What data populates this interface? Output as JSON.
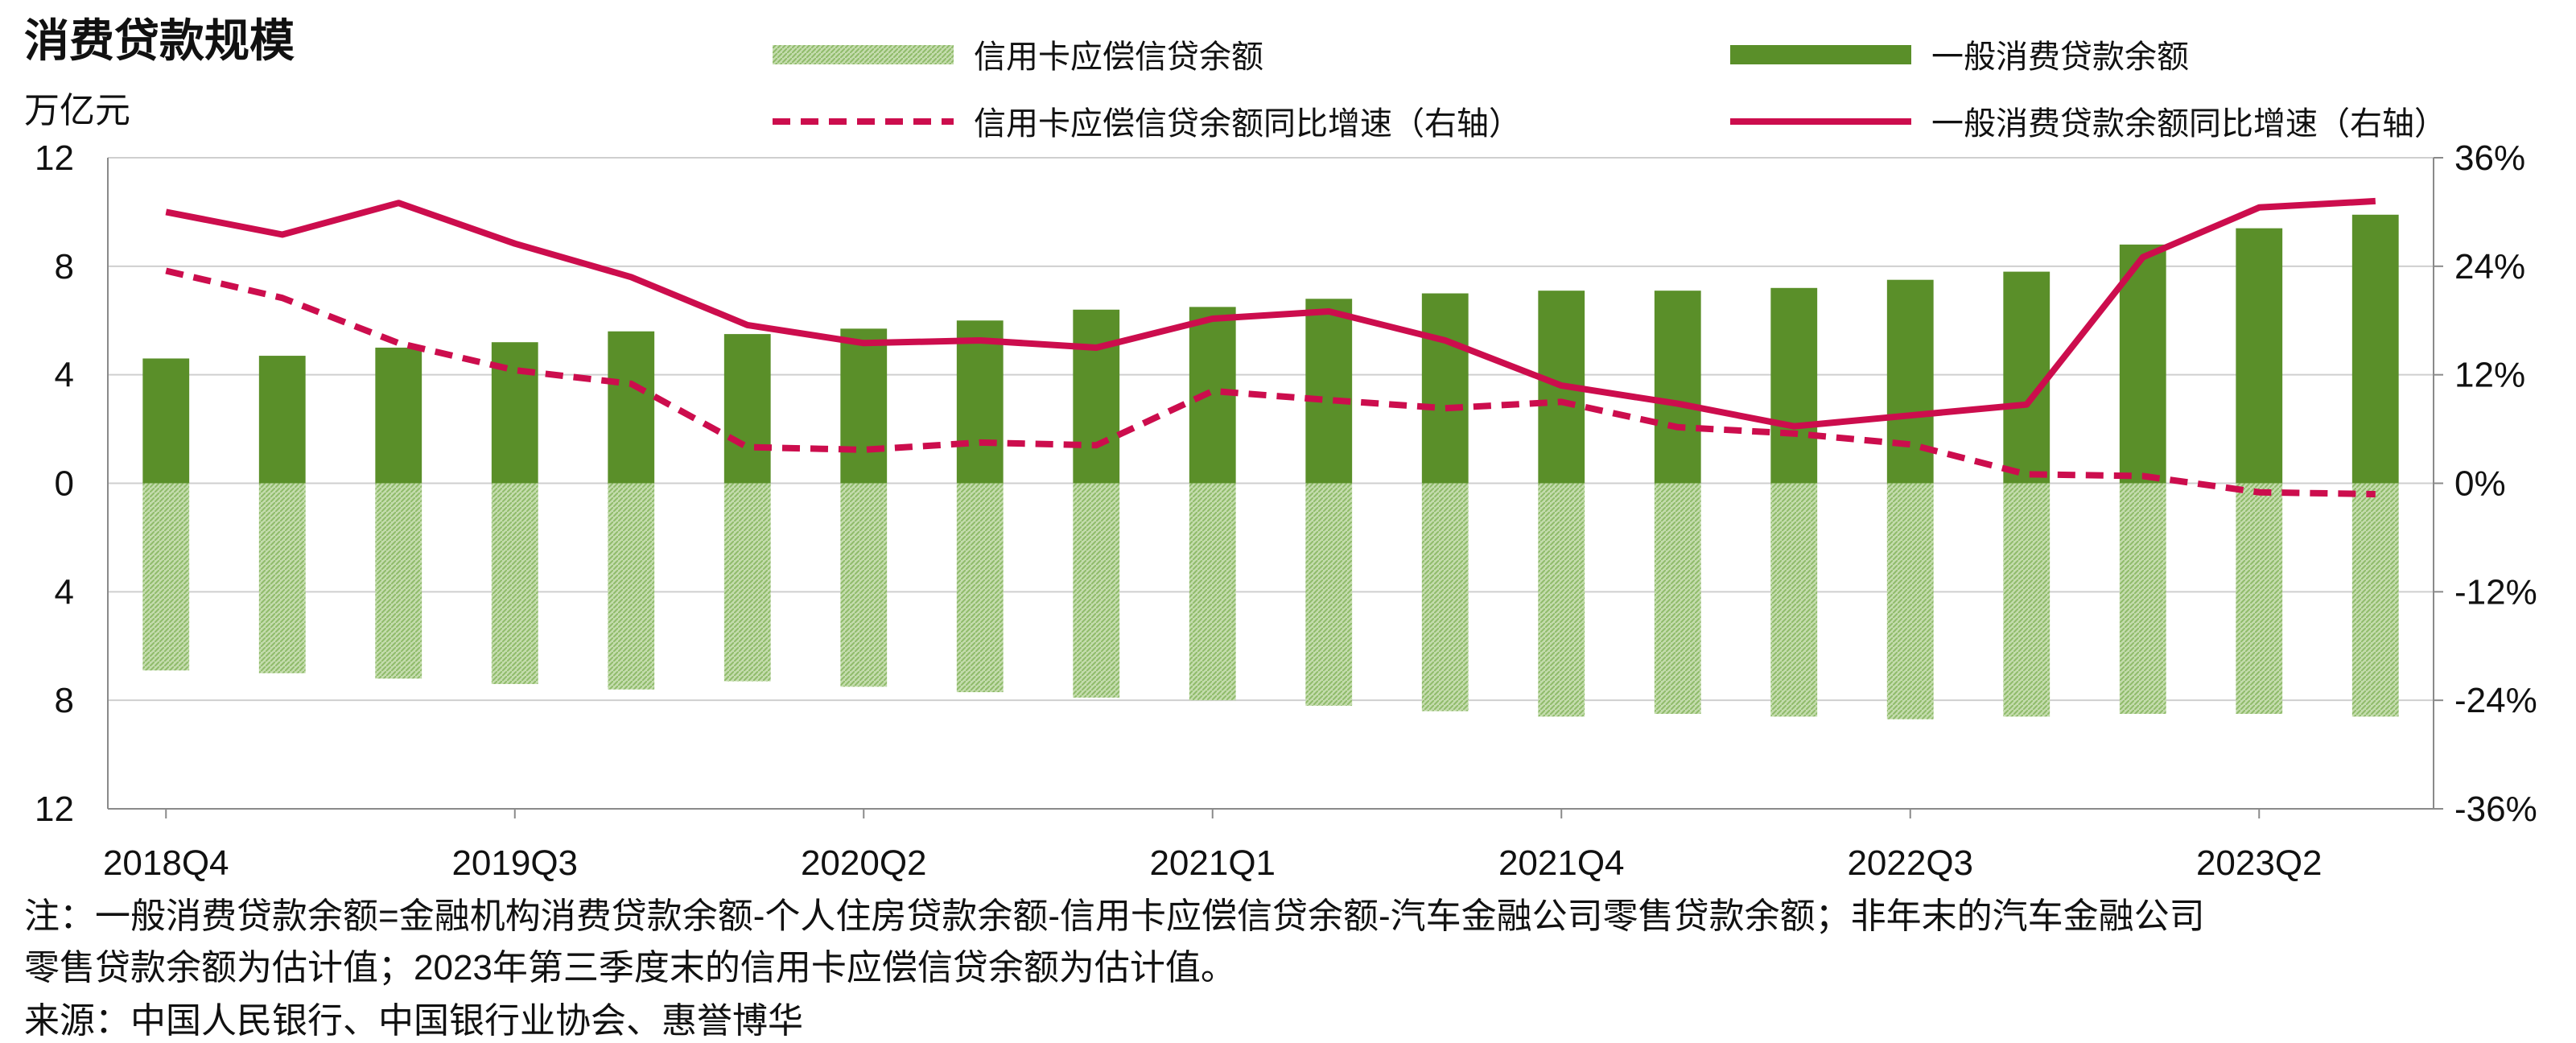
{
  "chart_data": {
    "type": "bar",
    "title": "消费贷款规模",
    "left_axis_unit": "万亿元",
    "categories": [
      "2018Q4",
      "2019Q1",
      "2019Q2",
      "2019Q3",
      "2019Q4",
      "2020Q1",
      "2020Q2",
      "2020Q3",
      "2020Q4",
      "2021Q1",
      "2021Q2",
      "2021Q3",
      "2021Q4",
      "2022Q1",
      "2022Q2",
      "2022Q3",
      "2022Q4",
      "2023Q1",
      "2023Q2",
      "2023Q3"
    ],
    "x_tick_labels": [
      "2018Q4",
      "2019Q3",
      "2020Q2",
      "2021Q1",
      "2021Q4",
      "2022Q3",
      "2023Q2"
    ],
    "x_tick_indices": [
      0,
      3,
      6,
      9,
      12,
      15,
      18
    ],
    "left_axis": {
      "ticks": [
        12,
        8,
        4,
        0,
        -4,
        -8,
        -12
      ],
      "tick_labels": [
        "12",
        "8",
        "4",
        "0",
        "4",
        "8",
        "12"
      ],
      "range": [
        -12,
        12
      ]
    },
    "right_axis": {
      "ticks": [
        36,
        24,
        12,
        0,
        -12,
        -24,
        -36
      ],
      "tick_labels": [
        "36%",
        "24%",
        "12%",
        "0%",
        "-12%",
        "-24%",
        "-36%"
      ],
      "range": [
        -36,
        36
      ]
    },
    "series": [
      {
        "name": "信用卡应偿信贷余额",
        "type": "bar",
        "axis": "left",
        "direction": "down",
        "color": "#a9cc8a",
        "values": [
          6.9,
          7.0,
          7.2,
          7.4,
          7.6,
          7.3,
          7.5,
          7.7,
          7.9,
          8.0,
          8.2,
          8.4,
          8.6,
          8.5,
          8.6,
          8.7,
          8.6,
          8.5,
          8.5,
          8.6
        ]
      },
      {
        "name": "一般消费贷款余额",
        "type": "bar",
        "axis": "left",
        "direction": "up",
        "color": "#5a8f29",
        "values": [
          4.6,
          4.7,
          5.0,
          5.2,
          5.6,
          5.5,
          5.7,
          6.0,
          6.4,
          6.5,
          6.8,
          7.0,
          7.1,
          7.1,
          7.2,
          7.5,
          7.8,
          8.8,
          9.4,
          9.9
        ]
      },
      {
        "name": "信用卡应偿信贷余额同比增速（右轴）",
        "type": "line",
        "axis": "right",
        "dashed": true,
        "color": "#cc0d4d",
        "values": [
          23.5,
          20.5,
          15.5,
          12.5,
          11.0,
          4.0,
          3.7,
          4.5,
          4.2,
          10.2,
          9.2,
          8.3,
          9.0,
          6.2,
          5.5,
          4.3,
          1.0,
          0.8,
          -1.0,
          -1.2
        ]
      },
      {
        "name": "一般消费贷款余额同比增速（右轴）",
        "type": "line",
        "axis": "right",
        "dashed": false,
        "color": "#cc0d4d",
        "values": [
          30.0,
          27.5,
          31.0,
          26.5,
          22.8,
          17.5,
          15.5,
          15.8,
          15.0,
          18.2,
          19.0,
          15.8,
          10.8,
          8.8,
          6.3,
          7.5,
          8.7,
          25.0,
          30.5,
          31.2
        ]
      }
    ],
    "grid": "horizontal",
    "legend_position": "top"
  },
  "notes": {
    "line1": "注：一般消费贷款余额=金融机构消费贷款余额-个人住房贷款余额-信用卡应偿信贷余额-汽车金融公司零售贷款余额；非年末的汽车金融公司",
    "line2": "零售贷款余额为估计值；2023年第三季度末的信用卡应偿信贷余额为估计值。",
    "source": "来源：中国人民银行、中国银行业协会、惠誉博华"
  }
}
